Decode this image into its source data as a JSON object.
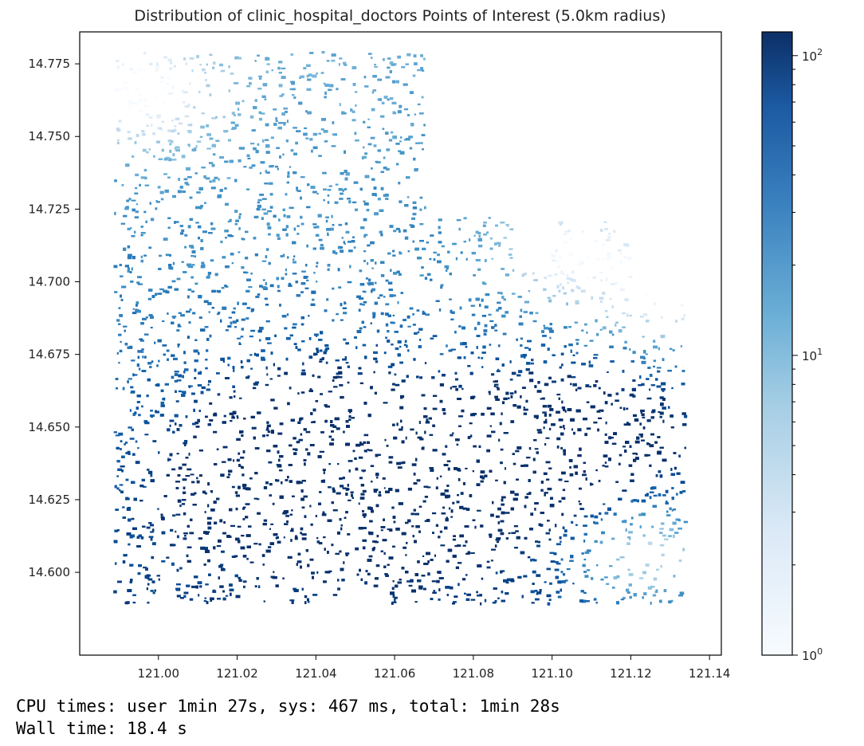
{
  "chart_data": {
    "type": "scatter",
    "title": "Distribution of clinic_hospital_doctors Points of Interest (5.0km radius)",
    "xlabel": "",
    "ylabel": "",
    "xlim": [
      120.98,
      121.143
    ],
    "ylim": [
      14.5715,
      14.786
    ],
    "x_ticks": [
      "121.00",
      "121.02",
      "121.04",
      "121.06",
      "121.08",
      "121.10",
      "121.12",
      "121.14"
    ],
    "y_ticks": [
      "14.600",
      "14.625",
      "14.650",
      "14.675",
      "14.700",
      "14.725",
      "14.750",
      "14.775"
    ],
    "grid": false,
    "point_extent": {
      "x": [
        120.989,
        121.134
      ],
      "y": [
        14.589,
        14.779
      ]
    },
    "colormap": "Blues",
    "colorbar": {
      "scale": "log",
      "range": [
        1,
        120
      ],
      "ticks": [
        {
          "base": "10",
          "exp": "0",
          "value": 1
        },
        {
          "base": "10",
          "exp": "1",
          "value": 10
        },
        {
          "base": "10",
          "exp": "2",
          "value": 100
        }
      ]
    },
    "regions_high_density": [
      {
        "x": 121.03,
        "y": 14.63,
        "value": 110
      },
      {
        "x": 121.06,
        "y": 14.625,
        "value": 120
      },
      {
        "x": 121.04,
        "y": 14.655,
        "value": 100
      },
      {
        "x": 121.085,
        "y": 14.64,
        "value": 95
      },
      {
        "x": 121.11,
        "y": 14.65,
        "value": 80
      }
    ],
    "regions_low_density": [
      {
        "x": 120.995,
        "y": 14.765,
        "value": 2
      },
      {
        "x": 121.13,
        "y": 14.695,
        "value": 1.5
      },
      {
        "x": 121.125,
        "y": 14.605,
        "value": 4
      },
      {
        "x": 121.105,
        "y": 14.71,
        "value": 8
      }
    ]
  },
  "output": {
    "cpu_line": "CPU times: user 1min 27s, sys: 467 ms, total: 1min 28s",
    "wall_line": "Wall time: 18.4 s"
  },
  "colors": {
    "cmap_low": "#f7fbff",
    "cmap_mid": "#6baed6",
    "cmap_high": "#08306b",
    "axes": "#000000"
  }
}
